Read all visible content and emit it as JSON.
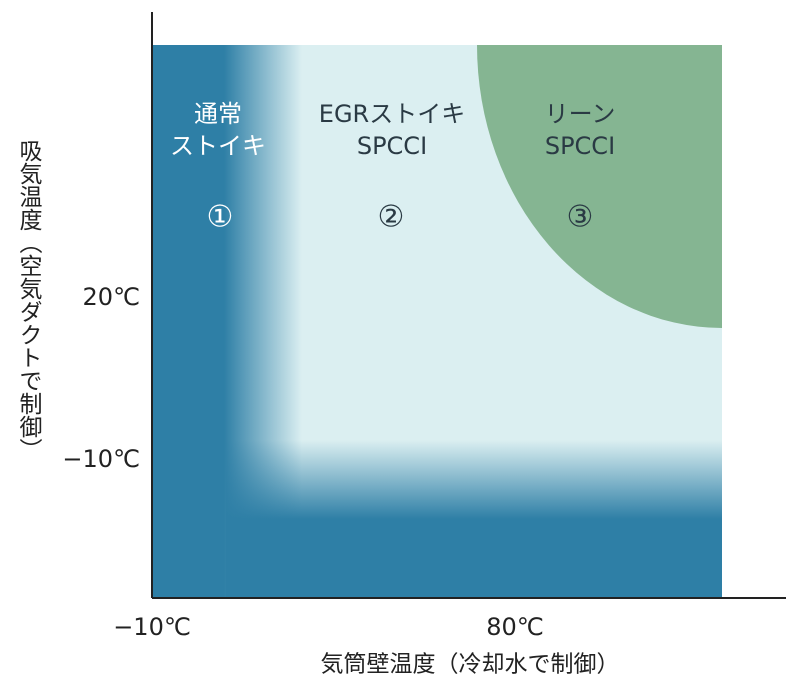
{
  "y_axis": {
    "title": "吸気温度（空気ダクトで制御）",
    "ticks": [
      "20℃",
      "−10℃"
    ]
  },
  "x_axis": {
    "title": "気筒壁温度（冷却水で制御）",
    "ticks": [
      "−10℃",
      "80℃"
    ]
  },
  "regions": [
    {
      "lines": [
        "通常",
        "ストイキ"
      ],
      "number": "①"
    },
    {
      "lines": [
        "EGRストイキ",
        "SPCCI"
      ],
      "number": "②"
    },
    {
      "lines": [
        "リーン",
        "SPCCI"
      ],
      "number": "③"
    }
  ]
}
